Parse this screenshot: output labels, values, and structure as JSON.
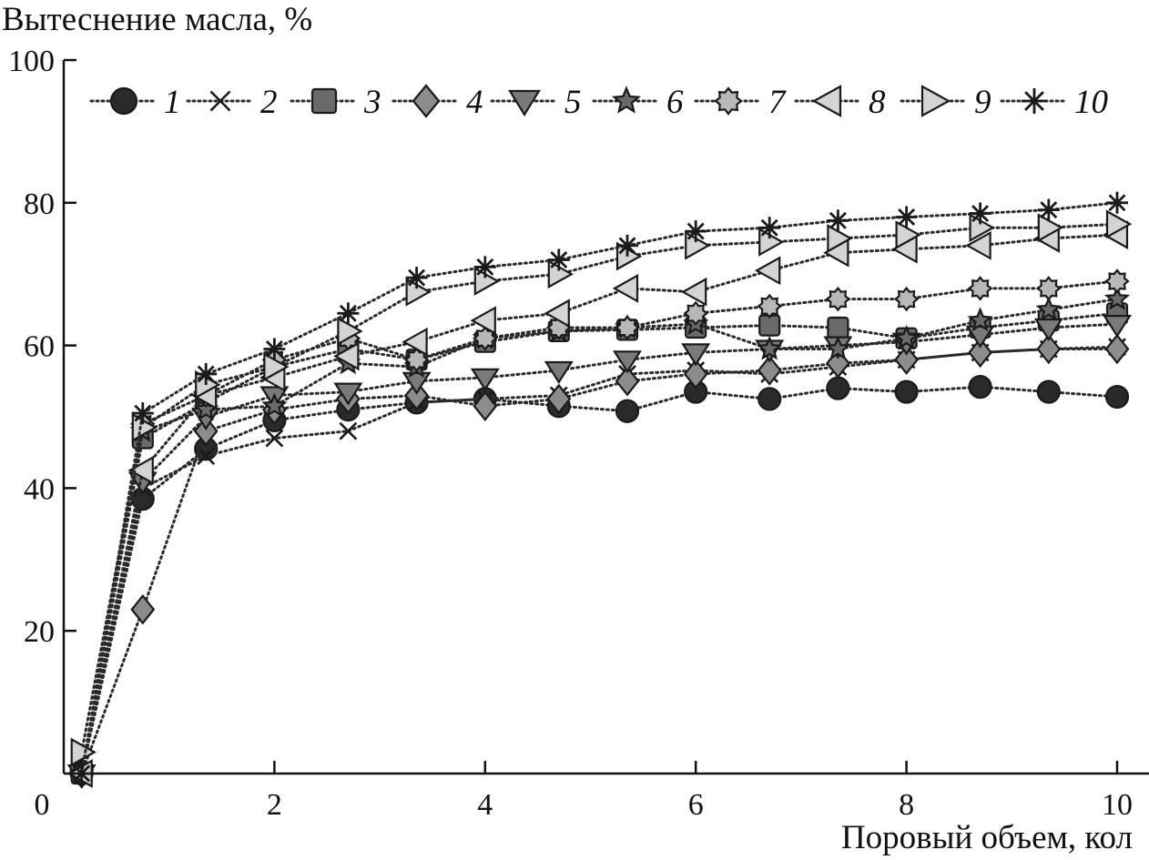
{
  "chart_data": {
    "type": "line",
    "ylabel": "Вытеснение масла, %",
    "xlabel": "Поровый объем, кол",
    "xlim": [
      0,
      10
    ],
    "ylim": [
      0,
      100
    ],
    "xticks": [
      0,
      2,
      4,
      6,
      8,
      10
    ],
    "yticks": [
      20,
      40,
      60,
      80,
      100
    ],
    "legend_position": "top",
    "x": [
      0.17,
      0.75,
      1.35,
      2.0,
      2.7,
      3.35,
      4.0,
      4.7,
      5.35,
      6.0,
      6.7,
      7.35,
      8.0,
      8.7,
      9.35,
      10.0
    ],
    "series": [
      {
        "name": "1",
        "marker": "circle",
        "fill": "#2a2a2a",
        "values": [
          0,
          38.5,
          45.5,
          49.5,
          51,
          52,
          52.5,
          51.5,
          50.8,
          53.5,
          52.5,
          54,
          53.5,
          54.2,
          53.5,
          52.8
        ]
      },
      {
        "name": "2",
        "marker": "x",
        "fill": "#222222",
        "values": [
          0,
          40,
          44.5,
          47,
          48,
          52,
          52.5,
          53,
          56,
          56.5,
          56,
          57,
          58,
          59,
          59.5,
          59.8
        ]
      },
      {
        "name": "3",
        "marker": "square",
        "fill": "#6a6a6a",
        "values": [
          0,
          47,
          52,
          57,
          59.5,
          58,
          60.5,
          62,
          62.2,
          62.5,
          62.8,
          62.5,
          61,
          62.5,
          63.5,
          64.5
        ]
      },
      {
        "name": "4",
        "marker": "diamond",
        "fill": "#8c8c8c",
        "values": [
          0,
          23,
          48,
          51,
          52.5,
          53,
          51.5,
          52.5,
          55,
          56,
          56.5,
          57.5,
          58,
          59,
          59.5,
          59.5
        ]
      },
      {
        "name": "5",
        "marker": "triangle-down",
        "fill": "#7a7a7a",
        "values": [
          0,
          41,
          50,
          53,
          53.5,
          55,
          55.5,
          56.5,
          58,
          59,
          59.5,
          60,
          60.5,
          61.5,
          62.5,
          63
        ]
      },
      {
        "name": "6",
        "marker": "star",
        "fill": "#6a6a6a",
        "values": [
          0,
          48,
          51,
          51.5,
          57.5,
          57,
          61,
          62,
          62.5,
          63,
          59.5,
          59.5,
          61,
          63.5,
          65,
          66.5
        ]
      },
      {
        "name": "7",
        "marker": "flower",
        "fill": "#b8b8b8",
        "values": [
          0,
          49,
          53,
          58,
          61,
          58,
          61,
          62.5,
          62.5,
          64.5,
          65.5,
          66.5,
          66.5,
          68,
          68,
          69
        ]
      },
      {
        "name": "8",
        "marker": "triangle-left",
        "fill": "#d4d4d4",
        "values": [
          0,
          42.5,
          53,
          55.5,
          58.5,
          60.5,
          63.5,
          64.5,
          68,
          67.5,
          70.5,
          73,
          73.5,
          74,
          75,
          75.5
        ]
      },
      {
        "name": "9",
        "marker": "triangle-right",
        "fill": "#d4d4d4",
        "values": [
          3,
          48.5,
          54.5,
          57,
          62,
          67.5,
          69,
          70,
          72.5,
          74,
          74.5,
          75,
          75.5,
          76.5,
          76.5,
          77
        ]
      },
      {
        "name": "10",
        "marker": "asterisk",
        "fill": "#222222",
        "values": [
          0,
          50.5,
          56,
          59.5,
          64.5,
          69.5,
          71,
          72,
          74,
          76,
          76.5,
          77.5,
          78,
          78.5,
          79,
          80
        ]
      }
    ]
  }
}
